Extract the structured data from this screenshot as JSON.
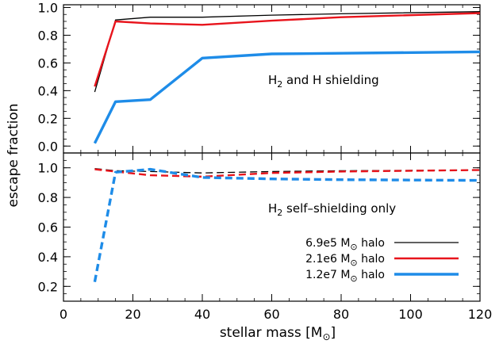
{
  "chart_data": {
    "type": "line",
    "xlabel": "stellar mass [M⊙]",
    "ylabel": "escape fraction",
    "xlim": [
      0,
      120
    ],
    "x_ticks": [
      0,
      20,
      40,
      60,
      80,
      100,
      120
    ],
    "x_tick_labels": [
      "0",
      "20",
      "40",
      "60",
      "80",
      "100",
      "120"
    ],
    "panels": [
      {
        "id": "top",
        "annotation": {
          "prefix": "H",
          "sub": "2",
          "rest": " and H shielding"
        },
        "ylim": [
          -0.05,
          1.02
        ],
        "y_ticks": [
          0.0,
          0.2,
          0.4,
          0.6,
          0.8,
          1.0
        ],
        "y_tick_labels": [
          "0.0",
          "0.2",
          "0.4",
          "0.6",
          "0.8",
          "1.0"
        ],
        "series": [
          {
            "name": "6.9e5 M⊙ halo",
            "color": "#000000",
            "style": "solid",
            "x": [
              9,
              15,
              25,
              40,
              60,
              80,
              120
            ],
            "y": [
              0.39,
              0.91,
              0.93,
              0.93,
              0.945,
              0.955,
              0.97
            ]
          },
          {
            "name": "2.1e6 M⊙ halo",
            "color": "#e8141c",
            "style": "solid",
            "x": [
              9,
              15,
              25,
              40,
              60,
              80,
              120
            ],
            "y": [
              0.43,
              0.9,
              0.885,
              0.875,
              0.905,
              0.93,
              0.96
            ]
          },
          {
            "name": "1.2e7 M⊙ halo",
            "color": "#1e8ce8",
            "style": "solid",
            "x": [
              9,
              15,
              25,
              40,
              60,
              80,
              120
            ],
            "y": [
              0.02,
              0.32,
              0.335,
              0.635,
              0.665,
              0.67,
              0.68
            ]
          }
        ]
      },
      {
        "id": "bottom",
        "annotation": {
          "prefix": "H",
          "sub": "2",
          "rest": " self–shielding only"
        },
        "ylim": [
          0.1,
          1.1
        ],
        "y_ticks": [
          0.2,
          0.4,
          0.6,
          0.8,
          1.0
        ],
        "y_tick_labels": [
          "0.2",
          "0.4",
          "0.6",
          "0.8",
          "1.0"
        ],
        "series": [
          {
            "name": "6.9e5 M⊙ halo",
            "color": "#000000",
            "style": "dashed",
            "x": [
              9,
              15,
              25,
              40,
              60,
              80,
              120
            ],
            "y": [
              0.995,
              0.98,
              0.975,
              0.965,
              0.975,
              0.98,
              0.985
            ]
          },
          {
            "name": "2.1e6 M⊙ halo",
            "color": "#e8141c",
            "style": "dashed",
            "x": [
              9,
              15,
              25,
              40,
              60,
              80,
              120
            ],
            "y": [
              0.99,
              0.975,
              0.95,
              0.94,
              0.965,
              0.975,
              0.985
            ]
          },
          {
            "name": "1.2e7 M⊙ halo",
            "color": "#1e8ce8",
            "style": "dashed",
            "x": [
              9,
              15,
              25,
              40,
              60,
              80,
              120
            ],
            "y": [
              0.23,
              0.97,
              0.99,
              0.935,
              0.925,
              0.92,
              0.915
            ]
          }
        ]
      }
    ],
    "legend": {
      "placement": "bottom-right",
      "entries": [
        {
          "prefix": "6.9e5 M",
          "suffix": " halo",
          "color": "#000000",
          "width": "thin"
        },
        {
          "prefix": "2.1e6 M",
          "suffix": " halo",
          "color": "#e8141c",
          "width": "medium"
        },
        {
          "prefix": "1.2e7 M",
          "suffix": " halo",
          "color": "#1e8ce8",
          "width": "thick"
        }
      ]
    }
  }
}
